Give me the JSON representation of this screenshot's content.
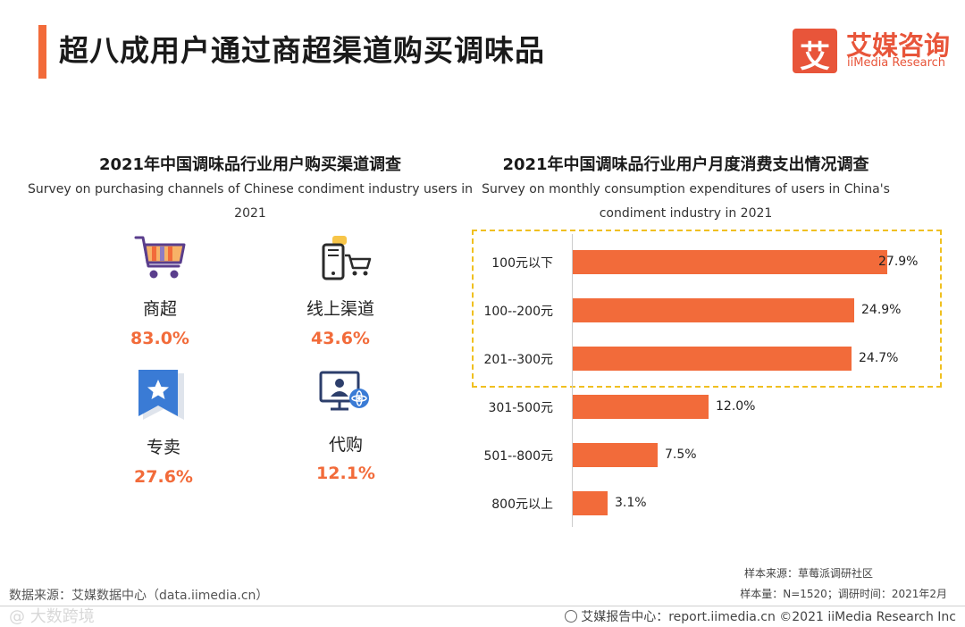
{
  "header": {
    "title": "超八成用户通过商超渠道购买调味品",
    "logo_mark": "艾",
    "logo_cn": "艾媒咨询",
    "logo_en": "iiMedia Research"
  },
  "left": {
    "title": "2021年中国调味品行业用户购买渠道调查",
    "subtitle": "Survey on purchasing channels of Chinese condiment industry users in 2021",
    "channels": [
      {
        "label": "商超",
        "value": "83.0%",
        "icon": "shopping-cart-icon"
      },
      {
        "label": "线上渠道",
        "value": "43.6%",
        "icon": "phone-cart-icon"
      },
      {
        "label": "专卖",
        "value": "27.6%",
        "icon": "star-badge-icon"
      },
      {
        "label": "代购",
        "value": "12.1%",
        "icon": "monitor-person-icon"
      }
    ]
  },
  "right": {
    "title": "2021年中国调味品行业用户月度消费支出情况调查",
    "subtitle": "Survey on monthly consumption expenditures of users in China's condiment industry in 2021"
  },
  "chart_data": [
    {
      "type": "table",
      "title": "2021年中国调味品行业用户购买渠道调查",
      "subtitle": "Survey on purchasing channels of Chinese condiment industry users in 2021",
      "categories": [
        "商超",
        "线上渠道",
        "专卖",
        "代购"
      ],
      "values": [
        83.0,
        43.6,
        27.6,
        12.1
      ],
      "unit": "%"
    },
    {
      "type": "bar",
      "orientation": "horizontal",
      "title": "2021年中国调味品行业用户月度消费支出情况调查",
      "subtitle": "Survey on monthly consumption expenditures of users in China's condiment industry in 2021",
      "categories": [
        "100元以下",
        "100--200元",
        "201--300元",
        "301-500元",
        "501--800元",
        "800元以上"
      ],
      "values": [
        27.9,
        24.9,
        24.7,
        12.0,
        7.5,
        3.1
      ],
      "labels": [
        "27.9%",
        "24.9%",
        "24.7%",
        "12.0%",
        "7.5%",
        "3.1%"
      ],
      "unit": "%",
      "xlim": [
        0,
        30
      ],
      "highlighted_categories": [
        "100元以下",
        "100--200元",
        "201--300元"
      ],
      "colors": {
        "bar": "#f26b3a",
        "highlight_border": "#f0c020"
      }
    }
  ],
  "footer": {
    "sample_source": "样本来源：草莓派调研社区",
    "sample_size": "样本量：N=1520；调研时间：2021年2月",
    "data_source": "数据来源：艾媒数据中心（data.iimedia.cn）",
    "copyright": "艾媒报告中心：report.iimedia.cn ©2021 iiMedia Research Inc",
    "watermark": "@ 大数跨境"
  },
  "colors": {
    "accent": "#f26b3a",
    "icon_blue": "#3a7bd5",
    "icon_dark": "#2c3e6b"
  }
}
